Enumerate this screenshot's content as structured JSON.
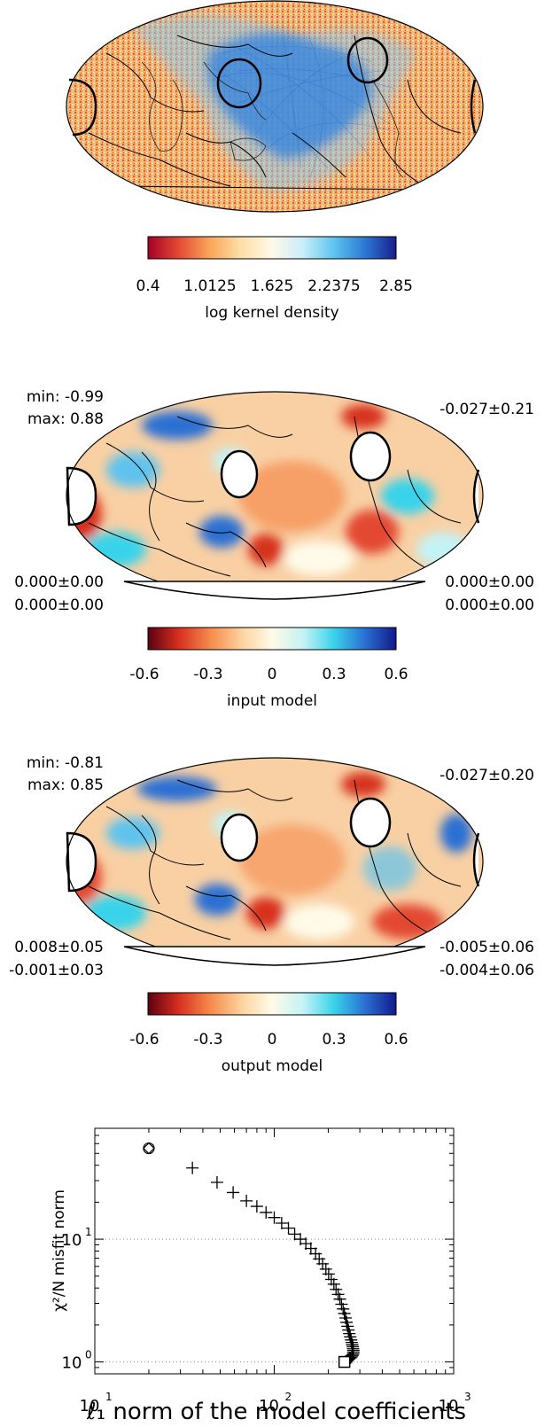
{
  "panel1": {
    "colorbar": {
      "ticks": [
        "0.4",
        "1.0125",
        "1.625",
        "2.2375",
        "2.85"
      ],
      "label": "log kernel density"
    }
  },
  "panel2": {
    "min": "min: -0.99",
    "max": "max:  0.88",
    "right_top": "-0.027±0.21",
    "left_bottom_1": "0.000±0.00",
    "left_bottom_2": "0.000±0.00",
    "right_bottom_1": "0.000±0.00",
    "right_bottom_2": "0.000±0.00",
    "colorbar": {
      "ticks": [
        "-0.6",
        "-0.3",
        "0",
        "0.3",
        "0.6"
      ],
      "label": "input model"
    }
  },
  "panel3": {
    "min": "min: -0.81",
    "max": "max:  0.85",
    "right_top": "-0.027±0.20",
    "left_bottom_1": "0.008±0.05",
    "left_bottom_2": "-0.001±0.03",
    "right_bottom_1": "-0.005±0.06",
    "right_bottom_2": "-0.004±0.06",
    "colorbar": {
      "ticks": [
        "-0.6",
        "-0.3",
        "0",
        "0.3",
        "0.6"
      ],
      "label": "output model"
    }
  },
  "colors": {
    "kernel_scale": [
      "#a50026",
      "#e34a33",
      "#f9a65a",
      "#fde0a8",
      "#fff9e6",
      "#c9eefb",
      "#5ec3ee",
      "#2b78d4",
      "#1a1f8c"
    ],
    "model_scale": [
      "#5e0010",
      "#d7301f",
      "#f58a4b",
      "#fdd29c",
      "#fffbe8",
      "#c5f3f5",
      "#39d3ea",
      "#2a6fd3",
      "#121a8a"
    ]
  },
  "chart_data": {
    "type": "scatter",
    "xscale": "log",
    "yscale": "log",
    "xlim": [
      10,
      1000
    ],
    "ylim": [
      0.8,
      80
    ],
    "xlabel": "ℓ₁ norm of the model coefficients",
    "ylabel": "χ²/N misfit norm",
    "xticks": [
      {
        "value": 10,
        "label": "10",
        "exp": "1"
      },
      {
        "value": 100,
        "label": "10",
        "exp": "2"
      },
      {
        "value": 1000,
        "label": "10",
        "exp": "3"
      }
    ],
    "yticks": [
      {
        "value": 1,
        "label": "10",
        "exp": "0"
      },
      {
        "value": 10,
        "label": "10",
        "exp": "1"
      }
    ],
    "grid_y": [
      1,
      10
    ],
    "start_point": {
      "x": 20,
      "y": 55
    },
    "end_point": {
      "x": 246,
      "y": 1.0
    },
    "points": [
      [
        35,
        38
      ],
      [
        48,
        29
      ],
      [
        59,
        24
      ],
      [
        70,
        20.5
      ],
      [
        80,
        18.5
      ],
      [
        90,
        16.5
      ],
      [
        100,
        15
      ],
      [
        110,
        13.5
      ],
      [
        120,
        12.3
      ],
      [
        130,
        11
      ],
      [
        140,
        10
      ],
      [
        150,
        9.2
      ],
      [
        160,
        8.4
      ],
      [
        170,
        7.6
      ],
      [
        178,
        6.9
      ],
      [
        186,
        6.3
      ],
      [
        194,
        5.7
      ],
      [
        201,
        5.2
      ],
      [
        208,
        4.7
      ],
      [
        215,
        4.3
      ],
      [
        221,
        3.9
      ],
      [
        227,
        3.55
      ],
      [
        232,
        3.25
      ],
      [
        237,
        2.95
      ],
      [
        242,
        2.7
      ],
      [
        246,
        2.48
      ],
      [
        250,
        2.28
      ],
      [
        253,
        2.1
      ],
      [
        256,
        1.95
      ],
      [
        259,
        1.82
      ],
      [
        262,
        1.7
      ],
      [
        265,
        1.6
      ],
      [
        268,
        1.51
      ],
      [
        270,
        1.44
      ],
      [
        272,
        1.38
      ],
      [
        274,
        1.33
      ],
      [
        275,
        1.28
      ],
      [
        276,
        1.24
      ],
      [
        276,
        1.2
      ],
      [
        275,
        1.16
      ],
      [
        273,
        1.13
      ],
      [
        270,
        1.1
      ],
      [
        266,
        1.08
      ],
      [
        262,
        1.06
      ],
      [
        258,
        1.04
      ],
      [
        254,
        1.02
      ],
      [
        250,
        1.01
      ]
    ]
  }
}
